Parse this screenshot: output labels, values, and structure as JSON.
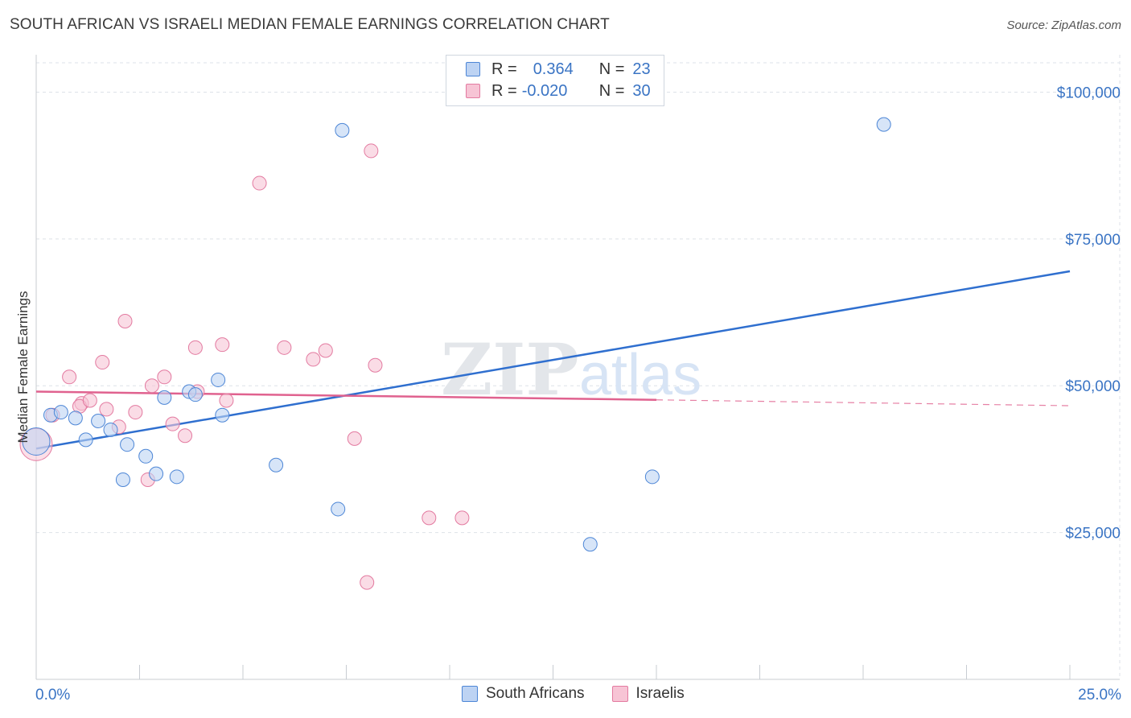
{
  "header": {
    "title": "SOUTH AFRICAN VS ISRAELI MEDIAN FEMALE EARNINGS CORRELATION CHART",
    "source": "Source: ZipAtlas.com"
  },
  "legend": {
    "rows": [
      {
        "r_label": "R =",
        "r_value": "0.364",
        "n_label": "N =",
        "n_value": "23"
      },
      {
        "r_label": "R =",
        "r_value": "-0.020",
        "n_label": "N =",
        "n_value": "30"
      }
    ]
  },
  "watermark": {
    "zip": "ZIP",
    "atlas": "atlas"
  },
  "colors": {
    "blue": "#4d86d6",
    "blue_fill": "#bdd3f3",
    "pink": "#e37aa0",
    "pink_fill": "#f7c4d5",
    "blue_line": "#2f6fcf",
    "pink_line": "#e0628f",
    "axis_label": "#3a74c4",
    "grid": "#dde2e8"
  },
  "chart_data": {
    "type": "scatter",
    "title": "SOUTH AFRICAN VS ISRAELI MEDIAN FEMALE EARNINGS CORRELATION CHART",
    "xlabel": "",
    "ylabel": "Median Female Earnings",
    "xlim": [
      0,
      25
    ],
    "ylim": [
      0,
      105000
    ],
    "x_tick_labels": [
      "0.0%",
      "25.0%"
    ],
    "y_ticks": [
      25000,
      50000,
      75000,
      100000
    ],
    "y_tick_labels": [
      "$25,000",
      "$50,000",
      "$75,000",
      "$100,000"
    ],
    "series": [
      {
        "name": "South Africans",
        "r": 0.364,
        "n": 23,
        "points": [
          [
            0.0,
            40500
          ],
          [
            0.35,
            45000
          ],
          [
            0.6,
            45500
          ],
          [
            0.95,
            44500
          ],
          [
            1.2,
            40800
          ],
          [
            1.5,
            44000
          ],
          [
            1.8,
            42500
          ],
          [
            2.1,
            34000
          ],
          [
            2.2,
            40000
          ],
          [
            2.65,
            38000
          ],
          [
            2.9,
            35000
          ],
          [
            3.1,
            48000
          ],
          [
            3.4,
            34500
          ],
          [
            3.7,
            49000
          ],
          [
            3.85,
            48500
          ],
          [
            4.4,
            51000
          ],
          [
            4.5,
            45000
          ],
          [
            5.8,
            36500
          ],
          [
            7.3,
            29000
          ],
          [
            7.4,
            93500
          ],
          [
            13.4,
            23000
          ],
          [
            14.9,
            34500
          ],
          [
            20.5,
            94500
          ]
        ],
        "trend": {
          "x0": 0.0,
          "y0": 39300,
          "x1": 25.0,
          "y1": 69500
        }
      },
      {
        "name": "Israelis",
        "r": -0.02,
        "n": 30,
        "points": [
          [
            0.0,
            40000
          ],
          [
            0.4,
            45000
          ],
          [
            0.8,
            51500
          ],
          [
            1.1,
            47000
          ],
          [
            1.05,
            46500
          ],
          [
            1.3,
            47500
          ],
          [
            1.6,
            54000
          ],
          [
            1.7,
            46000
          ],
          [
            2.0,
            43000
          ],
          [
            2.15,
            61000
          ],
          [
            2.4,
            45500
          ],
          [
            2.7,
            34000
          ],
          [
            2.8,
            50000
          ],
          [
            3.1,
            51500
          ],
          [
            3.3,
            43500
          ],
          [
            3.6,
            41500
          ],
          [
            3.85,
            56500
          ],
          [
            3.9,
            49000
          ],
          [
            4.5,
            57000
          ],
          [
            4.6,
            47500
          ],
          [
            5.4,
            84500
          ],
          [
            6.0,
            56500
          ],
          [
            6.7,
            54500
          ],
          [
            7.0,
            56000
          ],
          [
            7.7,
            41000
          ],
          [
            8.0,
            16500
          ],
          [
            8.1,
            90000
          ],
          [
            8.2,
            53500
          ],
          [
            9.5,
            27500
          ],
          [
            10.3,
            27500
          ]
        ],
        "trend": {
          "x0": 0.0,
          "y0": 49000,
          "x1": 15.0,
          "y1": 47600
        },
        "trend_dashed": {
          "x0": 15.0,
          "y0": 47600,
          "x1": 25.0,
          "y1": 46600
        }
      }
    ]
  }
}
